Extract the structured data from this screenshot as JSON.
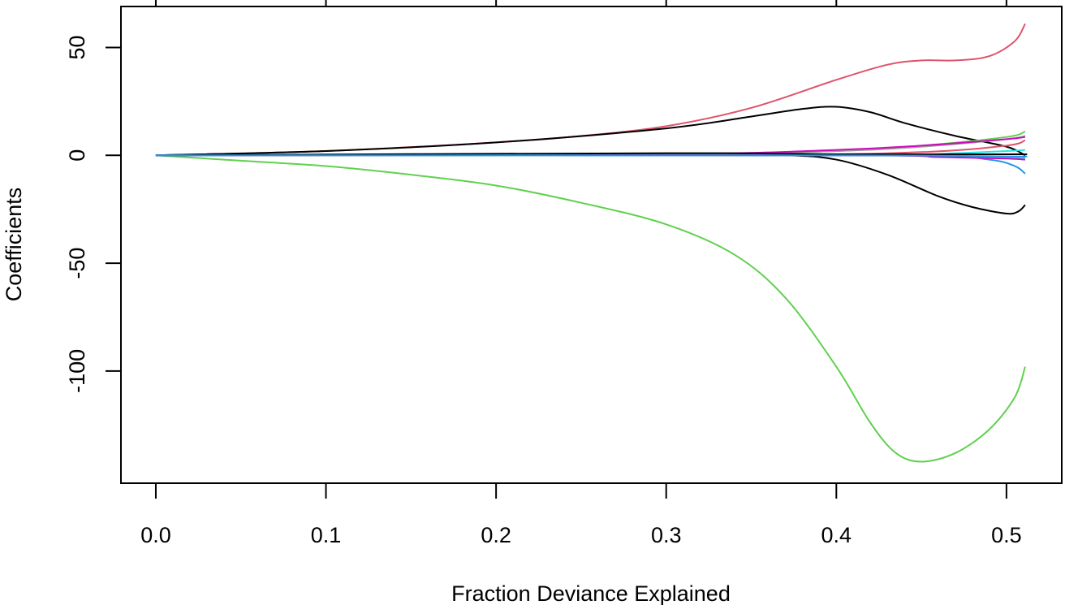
{
  "chart_data": {
    "type": "line",
    "title": "",
    "xlabel": "Fraction Deviance Explained",
    "ylabel": "Coefficients",
    "xlim": [
      -0.0205,
      0.5325
    ],
    "ylim": [
      -152,
      69
    ],
    "x_ticks": [
      0.0,
      0.1,
      0.2,
      0.3,
      0.4,
      0.5
    ],
    "x_tick_labels": [
      "0.0",
      "0.1",
      "0.2",
      "0.3",
      "0.4",
      "0.5"
    ],
    "top_ticks": [
      0.0,
      0.1,
      0.2,
      0.3,
      0.4,
      0.5
    ],
    "y_ticks": [
      50,
      0,
      -50,
      -100
    ],
    "y_tick_labels": [
      "50",
      "0",
      "-50",
      "-100"
    ],
    "grid": false,
    "legend": "none",
    "series": [
      {
        "color": "#DF536B",
        "points": [
          [
            0.0,
            0
          ],
          [
            0.1,
            2
          ],
          [
            0.2,
            6
          ],
          [
            0.25,
            9
          ],
          [
            0.3,
            13.5
          ],
          [
            0.35,
            22
          ],
          [
            0.4,
            35
          ],
          [
            0.43,
            42
          ],
          [
            0.45,
            44
          ],
          [
            0.47,
            44
          ],
          [
            0.49,
            46
          ],
          [
            0.505,
            53
          ],
          [
            0.511,
            61
          ]
        ]
      },
      {
        "color": "#000000",
        "points": [
          [
            0.0,
            0
          ],
          [
            0.1,
            2
          ],
          [
            0.2,
            6
          ],
          [
            0.3,
            12.5
          ],
          [
            0.35,
            18
          ],
          [
            0.38,
            21.5
          ],
          [
            0.4,
            22.5
          ],
          [
            0.42,
            20
          ],
          [
            0.44,
            15
          ],
          [
            0.47,
            9
          ],
          [
            0.5,
            4
          ],
          [
            0.511,
            0
          ]
        ]
      },
      {
        "color": "#61D04F",
        "points": [
          [
            0.0,
            0
          ],
          [
            0.05,
            -2.5
          ],
          [
            0.1,
            -5
          ],
          [
            0.15,
            -9
          ],
          [
            0.2,
            -14
          ],
          [
            0.25,
            -22
          ],
          [
            0.3,
            -32
          ],
          [
            0.34,
            -46
          ],
          [
            0.37,
            -66
          ],
          [
            0.4,
            -98
          ],
          [
            0.42,
            -124
          ],
          [
            0.435,
            -138
          ],
          [
            0.45,
            -142
          ],
          [
            0.47,
            -138
          ],
          [
            0.49,
            -127
          ],
          [
            0.505,
            -112
          ],
          [
            0.511,
            -98
          ]
        ]
      },
      {
        "color": "#000000",
        "points": [
          [
            0.0,
            0
          ],
          [
            0.3,
            0.5
          ],
          [
            0.37,
            0
          ],
          [
            0.4,
            -2
          ],
          [
            0.43,
            -9
          ],
          [
            0.46,
            -19
          ],
          [
            0.48,
            -24
          ],
          [
            0.5,
            -27
          ],
          [
            0.507,
            -26
          ],
          [
            0.511,
            -23
          ]
        ]
      },
      {
        "color": "#2297E6",
        "points": [
          [
            0.0,
            0
          ],
          [
            0.3,
            0
          ],
          [
            0.45,
            0
          ],
          [
            0.49,
            -2
          ],
          [
            0.505,
            -5
          ],
          [
            0.511,
            -8.5
          ]
        ]
      },
      {
        "color": "#61D04F",
        "points": [
          [
            0.0,
            0
          ],
          [
            0.3,
            0.5
          ],
          [
            0.4,
            2
          ],
          [
            0.45,
            4.5
          ],
          [
            0.5,
            8.5
          ],
          [
            0.511,
            11
          ]
        ]
      },
      {
        "color": "#9E9E9E",
        "points": [
          [
            0.0,
            0
          ],
          [
            0.3,
            0.5
          ],
          [
            0.4,
            2
          ],
          [
            0.45,
            4
          ],
          [
            0.5,
            7.5
          ],
          [
            0.511,
            9
          ]
        ]
      },
      {
        "color": "#CD0BBC",
        "points": [
          [
            0.0,
            0
          ],
          [
            0.3,
            0.6
          ],
          [
            0.4,
            2.5
          ],
          [
            0.45,
            4.5
          ],
          [
            0.5,
            7.5
          ],
          [
            0.511,
            8.5
          ]
        ]
      },
      {
        "color": "#DF536B",
        "points": [
          [
            0.0,
            0
          ],
          [
            0.35,
            0.3
          ],
          [
            0.45,
            1.5
          ],
          [
            0.5,
            4.5
          ],
          [
            0.511,
            7
          ]
        ]
      },
      {
        "color": "#28E2E5",
        "points": [
          [
            0.0,
            0
          ],
          [
            0.4,
            0
          ],
          [
            0.47,
            1
          ],
          [
            0.5,
            2
          ],
          [
            0.511,
            2.5
          ]
        ]
      },
      {
        "color": "#28E2E5",
        "points": [
          [
            0.0,
            0
          ],
          [
            0.4,
            0
          ],
          [
            0.47,
            -0.5
          ],
          [
            0.5,
            -1
          ],
          [
            0.511,
            -1.2
          ]
        ]
      },
      {
        "color": "#CD0BBC",
        "points": [
          [
            0.0,
            0
          ],
          [
            0.4,
            0
          ],
          [
            0.46,
            -0.8
          ],
          [
            0.5,
            -1.5
          ],
          [
            0.511,
            -2
          ]
        ]
      },
      {
        "color": "#000000",
        "points": [
          [
            0.0,
            0
          ],
          [
            0.3,
            1
          ],
          [
            0.4,
            0.5
          ],
          [
            0.5,
            0.5
          ],
          [
            0.511,
            0.5
          ]
        ]
      },
      {
        "color": "#2297E6",
        "points": [
          [
            0.0,
            0
          ],
          [
            0.4,
            0
          ],
          [
            0.5,
            -0.5
          ],
          [
            0.511,
            -0.5
          ]
        ]
      }
    ]
  }
}
